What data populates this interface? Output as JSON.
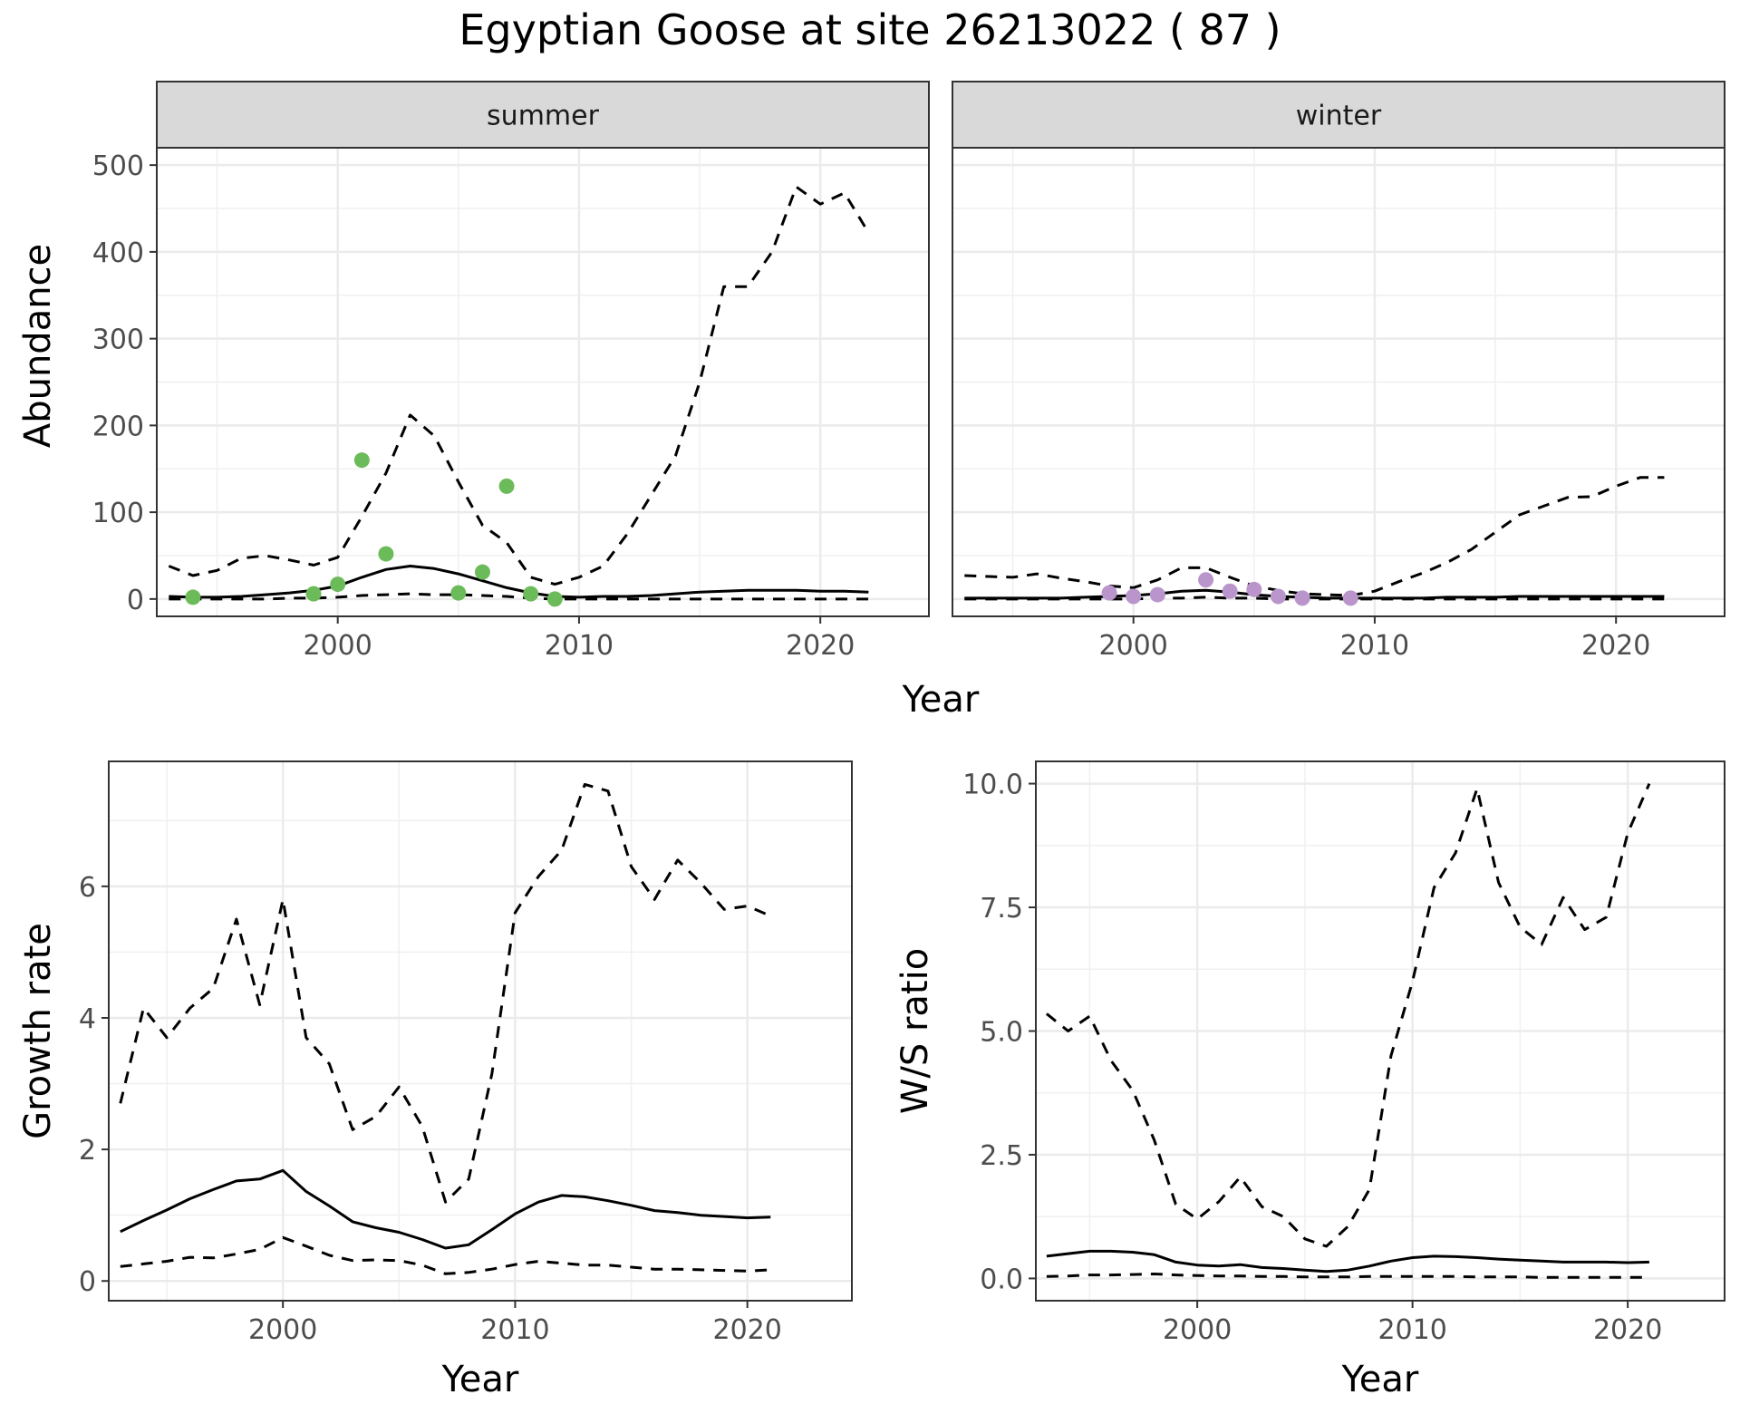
{
  "title": "Egyptian Goose at site 26213022 ( 87 )",
  "colors": {
    "summer_points": "#6cbb5a",
    "winter_points": "#b995cc"
  },
  "chart_data": [
    {
      "type": "line",
      "panel": "summer",
      "ylabel": "Abundance",
      "xlabel": "Year",
      "xlim": [
        1992.5,
        2024.5
      ],
      "ylim": [
        -20,
        520
      ],
      "xticks": [
        2000,
        2010,
        2020
      ],
      "yticks": [
        0,
        100,
        200,
        300,
        400,
        500
      ],
      "grid": true,
      "x": [
        1993,
        1994,
        1995,
        1996,
        1997,
        1998,
        1999,
        2000,
        2001,
        2002,
        2003,
        2004,
        2005,
        2006,
        2007,
        2008,
        2009,
        2010,
        2011,
        2012,
        2013,
        2014,
        2015,
        2016,
        2017,
        2018,
        2019,
        2020,
        2021,
        2022
      ],
      "series": [
        {
          "role": "upper",
          "style": "dashed",
          "values": [
            38,
            27,
            33,
            47,
            50,
            45,
            39,
            48,
            95,
            145,
            212,
            188,
            135,
            85,
            65,
            25,
            17,
            25,
            38,
            75,
            120,
            165,
            250,
            360,
            360,
            400,
            475,
            455,
            468,
            422
          ]
        },
        {
          "role": "estimate",
          "style": "solid",
          "values": [
            3,
            2,
            2,
            3,
            5,
            7,
            10,
            15,
            25,
            34,
            38,
            35,
            29,
            21,
            13,
            7,
            3,
            2,
            3,
            3,
            4,
            6,
            8,
            9,
            10,
            10,
            10,
            9,
            9,
            8
          ]
        },
        {
          "role": "lower",
          "style": "dashed",
          "values": [
            0,
            0,
            0,
            0,
            0,
            1,
            1,
            2,
            4,
            5,
            6,
            5,
            5,
            4,
            3,
            1,
            0,
            0,
            0,
            0,
            0,
            0,
            0,
            0,
            0,
            0,
            0,
            0,
            0,
            0
          ]
        }
      ],
      "points": {
        "x": [
          1994,
          1999,
          2000,
          2001,
          2002,
          2005,
          2006,
          2007,
          2008,
          2009
        ],
        "y": [
          2,
          6,
          17,
          160,
          52,
          7,
          31,
          130,
          6,
          0
        ]
      }
    },
    {
      "type": "line",
      "panel": "winter",
      "ylabel": "Abundance",
      "xlabel": "Year",
      "xlim": [
        1992.5,
        2024.5
      ],
      "ylim": [
        -20,
        520
      ],
      "xticks": [
        2000,
        2010,
        2020
      ],
      "grid": true,
      "x": [
        1993,
        1994,
        1995,
        1996,
        1997,
        1998,
        1999,
        2000,
        2001,
        2002,
        2003,
        2004,
        2005,
        2006,
        2007,
        2008,
        2009,
        2010,
        2011,
        2012,
        2013,
        2014,
        2015,
        2016,
        2017,
        2018,
        2019,
        2020,
        2021,
        2022
      ],
      "series": [
        {
          "role": "upper",
          "style": "dashed",
          "values": [
            27,
            26,
            25,
            29,
            24,
            20,
            15,
            13,
            22,
            36,
            36,
            25,
            15,
            10,
            6,
            5,
            4,
            9,
            20,
            30,
            42,
            57,
            77,
            97,
            107,
            117,
            118,
            130,
            140,
            140
          ]
        },
        {
          "role": "estimate",
          "style": "solid",
          "values": [
            1,
            1,
            1,
            1,
            1,
            2,
            3,
            4,
            6,
            9,
            10,
            8,
            5,
            3,
            2,
            1,
            1,
            1,
            1,
            1,
            2,
            2,
            2,
            3,
            3,
            3,
            3,
            3,
            3,
            3
          ]
        },
        {
          "role": "lower",
          "style": "dashed",
          "values": [
            0,
            0,
            0,
            0,
            0,
            0,
            0,
            0,
            1,
            1,
            2,
            1,
            1,
            0,
            0,
            0,
            0,
            0,
            0,
            0,
            0,
            0,
            0,
            0,
            0,
            0,
            0,
            0,
            0,
            0
          ]
        }
      ],
      "points": {
        "x": [
          1999,
          2000,
          2001,
          2003,
          2004,
          2005,
          2006,
          2007,
          2009
        ],
        "y": [
          7,
          3,
          5,
          22,
          9,
          11,
          3,
          1,
          1
        ]
      }
    },
    {
      "type": "line",
      "panel": "growth",
      "ylabel": "Growth rate",
      "xlabel": "Year",
      "xlim": [
        1992.5,
        2024.5
      ],
      "ylim": [
        -0.3,
        7.9
      ],
      "xticks": [
        2000,
        2010,
        2020
      ],
      "yticks": [
        0,
        2,
        4,
        6
      ],
      "grid": true,
      "x": [
        1993,
        1994,
        1995,
        1996,
        1997,
        1998,
        1999,
        2000,
        2001,
        2002,
        2003,
        2004,
        2005,
        2006,
        2007,
        2008,
        2009,
        2010,
        2011,
        2012,
        2013,
        2014,
        2015,
        2016,
        2017,
        2018,
        2019,
        2020,
        2021
      ],
      "series": [
        {
          "role": "upper",
          "style": "dashed",
          "values": [
            2.7,
            4.15,
            3.7,
            4.15,
            4.45,
            5.5,
            4.2,
            5.8,
            3.7,
            3.3,
            2.3,
            2.5,
            2.95,
            2.35,
            1.2,
            1.55,
            3.15,
            5.6,
            6.15,
            6.55,
            7.55,
            7.45,
            6.3,
            5.8,
            6.4,
            6.05,
            5.65,
            5.7,
            5.55
          ]
        },
        {
          "role": "estimate",
          "style": "solid",
          "values": [
            0.75,
            0.92,
            1.08,
            1.25,
            1.39,
            1.52,
            1.55,
            1.68,
            1.36,
            1.14,
            0.9,
            0.81,
            0.74,
            0.63,
            0.5,
            0.55,
            0.78,
            1.02,
            1.2,
            1.3,
            1.28,
            1.22,
            1.15,
            1.07,
            1.04,
            1.0,
            0.98,
            0.96,
            0.97
          ]
        },
        {
          "role": "lower",
          "style": "dashed",
          "values": [
            0.22,
            0.26,
            0.3,
            0.36,
            0.35,
            0.41,
            0.48,
            0.66,
            0.53,
            0.39,
            0.31,
            0.32,
            0.31,
            0.24,
            0.11,
            0.13,
            0.18,
            0.25,
            0.3,
            0.27,
            0.24,
            0.24,
            0.21,
            0.18,
            0.18,
            0.17,
            0.16,
            0.15,
            0.17
          ]
        }
      ]
    },
    {
      "type": "line",
      "panel": "ratio",
      "ylabel": "W/S ratio",
      "xlabel": "Year",
      "xlim": [
        1992.5,
        2024.5
      ],
      "ylim": [
        -0.45,
        10.45
      ],
      "xticks": [
        2000,
        2010,
        2020
      ],
      "yticks": [
        0.0,
        2.5,
        5.0,
        7.5,
        10.0
      ],
      "ytick_labels": [
        "0.0",
        "2.5",
        "5.0",
        "7.5",
        "10.0"
      ],
      "grid": true,
      "x": [
        1993,
        1994,
        1995,
        1996,
        1997,
        1998,
        1999,
        2000,
        2001,
        2002,
        2003,
        2004,
        2005,
        2006,
        2007,
        2008,
        2009,
        2010,
        2011,
        2012,
        2013,
        2014,
        2015,
        2016,
        2017,
        2018,
        2019,
        2020,
        2021
      ],
      "series": [
        {
          "role": "upper",
          "style": "dashed",
          "values": [
            5.35,
            5.0,
            5.3,
            4.4,
            3.8,
            2.8,
            1.5,
            1.2,
            1.55,
            2.05,
            1.45,
            1.25,
            0.8,
            0.65,
            1.05,
            1.8,
            4.5,
            6.0,
            7.9,
            8.6,
            9.9,
            8.0,
            7.1,
            6.75,
            7.7,
            7.05,
            7.3,
            9.0,
            10.0
          ]
        },
        {
          "role": "estimate",
          "style": "solid",
          "values": [
            0.45,
            0.5,
            0.55,
            0.55,
            0.53,
            0.48,
            0.33,
            0.27,
            0.25,
            0.28,
            0.22,
            0.2,
            0.17,
            0.14,
            0.17,
            0.25,
            0.35,
            0.42,
            0.45,
            0.44,
            0.42,
            0.39,
            0.37,
            0.35,
            0.33,
            0.33,
            0.33,
            0.32,
            0.33
          ]
        },
        {
          "role": "lower",
          "style": "dashed",
          "values": [
            0.04,
            0.05,
            0.07,
            0.07,
            0.08,
            0.09,
            0.07,
            0.06,
            0.05,
            0.05,
            0.04,
            0.04,
            0.03,
            0.03,
            0.03,
            0.04,
            0.04,
            0.04,
            0.04,
            0.04,
            0.03,
            0.03,
            0.03,
            0.02,
            0.02,
            0.02,
            0.02,
            0.02,
            0.02
          ]
        }
      ]
    }
  ]
}
